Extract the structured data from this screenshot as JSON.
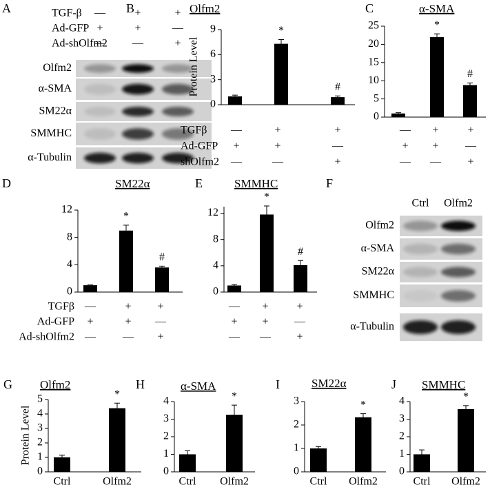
{
  "blots": [
    {
      "panel": "A",
      "treatments": [
        {
          "name": "TGF-β",
          "signs": [
            "—",
            "+",
            "+"
          ]
        },
        {
          "name": "Ad-GFP",
          "signs": [
            "+",
            "+",
            "—"
          ]
        },
        {
          "name": "Ad-shOlfm2",
          "signs": [
            "—",
            "—",
            "+"
          ]
        }
      ],
      "bands": [
        "Olfm2",
        "α-SMA",
        "SM22α",
        "SMMHC",
        "α-Tubulin"
      ]
    },
    {
      "panel": "F",
      "lanes": [
        "Ctrl",
        "Olfm2"
      ],
      "bands": [
        "Olfm2",
        "α-SMA",
        "SM22α",
        "SMMHC",
        "α-Tubulin"
      ]
    }
  ],
  "chart_data": [
    {
      "type": "bar",
      "panel": "B",
      "title": "Olfm2",
      "ylabel": "Protein Level",
      "ylim": [
        0,
        9
      ],
      "yticks": [
        0,
        3,
        6,
        9
      ],
      "values": [
        1,
        7.3,
        0.9
      ],
      "errors": [
        0.15,
        0.5,
        0.15
      ],
      "annotations": [
        null,
        "*",
        "#"
      ],
      "treatments": [
        {
          "name": "TGFβ",
          "signs": [
            "—",
            "+",
            "+"
          ]
        },
        {
          "name": "Ad-GFP",
          "signs": [
            "+",
            "+",
            "—"
          ]
        },
        {
          "name": "shOlfm2",
          "signs": [
            "—",
            "—",
            "+"
          ]
        }
      ]
    },
    {
      "type": "bar",
      "panel": "C",
      "title": "α-SMA",
      "ylim": [
        0,
        25
      ],
      "yticks": [
        0,
        5,
        10,
        15,
        20,
        25
      ],
      "values": [
        1,
        22,
        8.8
      ],
      "errors": [
        0.2,
        0.9,
        0.6
      ],
      "annotations": [
        null,
        "*",
        "#"
      ],
      "treatments": [
        {
          "signs": [
            "—",
            "+",
            "+"
          ]
        },
        {
          "signs": [
            "+",
            "+",
            "—"
          ]
        },
        {
          "signs": [
            "—",
            "—",
            "+"
          ]
        }
      ]
    },
    {
      "type": "bar",
      "panel": "D",
      "title": "SM22α",
      "ylim": [
        0,
        12
      ],
      "yticks": [
        0,
        4,
        8,
        12
      ],
      "values": [
        1,
        9,
        3.6
      ],
      "errors": [
        0.05,
        0.8,
        0.2
      ],
      "annotations": [
        null,
        "*",
        "#"
      ],
      "treatments": [
        {
          "name": "TGFβ",
          "signs": [
            "—",
            "+",
            "+"
          ]
        },
        {
          "name": "Ad-GFP",
          "signs": [
            "+",
            "+",
            "—"
          ]
        },
        {
          "name": "Ad-shOlfm2",
          "signs": [
            "—",
            "—",
            "+"
          ]
        }
      ]
    },
    {
      "type": "bar",
      "panel": "E",
      "title": "SMMHC",
      "ylim": [
        0,
        13
      ],
      "yticks": [
        0,
        4,
        8,
        12
      ],
      "values": [
        1,
        11.8,
        4.1
      ],
      "errors": [
        0.15,
        1.3,
        0.7
      ],
      "annotations": [
        null,
        "*",
        "#"
      ],
      "treatments": [
        {
          "signs": [
            "—",
            "+",
            "+"
          ]
        },
        {
          "signs": [
            "+",
            "+",
            "—"
          ]
        },
        {
          "signs": [
            "—",
            "—",
            "+"
          ]
        }
      ]
    },
    {
      "type": "bar",
      "panel": "G",
      "title": "Olfm2",
      "ylabel": "Protein Level",
      "ylim": [
        0,
        5
      ],
      "yticks": [
        0,
        1,
        2,
        3,
        4,
        5
      ],
      "categories": [
        "Ctrl",
        "Olfm2"
      ],
      "values": [
        1,
        4.4
      ],
      "errors": [
        0.15,
        0.35
      ],
      "annotations": [
        null,
        "*"
      ]
    },
    {
      "type": "bar",
      "panel": "H",
      "title": "α-SMA",
      "ylim": [
        0,
        4
      ],
      "yticks": [
        0,
        1,
        2,
        3,
        4
      ],
      "categories": [
        "Ctrl",
        "Olfm2"
      ],
      "values": [
        1,
        3.25
      ],
      "errors": [
        0.2,
        0.55
      ],
      "annotations": [
        null,
        "*"
      ]
    },
    {
      "type": "bar",
      "panel": "I",
      "title": "SM22α",
      "ylim": [
        0,
        3
      ],
      "yticks": [
        0,
        1,
        2,
        3
      ],
      "categories": [
        "Ctrl",
        "Olfm2"
      ],
      "values": [
        1,
        2.33
      ],
      "errors": [
        0.08,
        0.15
      ],
      "annotations": [
        null,
        "*"
      ]
    },
    {
      "type": "bar",
      "panel": "J",
      "title": "SMMHC",
      "ylim": [
        0,
        4
      ],
      "yticks": [
        0,
        1,
        2,
        3,
        4
      ],
      "categories": [
        "Ctrl",
        "Olfm2"
      ],
      "values": [
        1,
        3.57
      ],
      "errors": [
        0.25,
        0.2
      ],
      "annotations": [
        null,
        "*"
      ]
    }
  ]
}
